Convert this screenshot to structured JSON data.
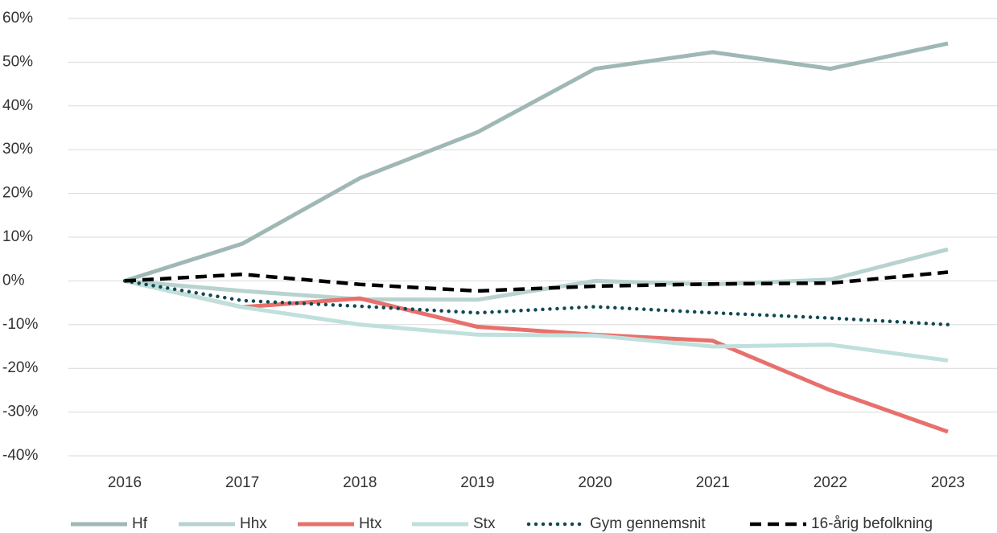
{
  "chart_data": {
    "type": "line",
    "categories": [
      "2016",
      "2017",
      "2018",
      "2019",
      "2020",
      "2021",
      "2022",
      "2023"
    ],
    "series": [
      {
        "name": "Hf",
        "color": "#9fb8b5",
        "style": "solid",
        "values": [
          0,
          8.5,
          23.5,
          34,
          48.5,
          52.3,
          48.5,
          54.3
        ]
      },
      {
        "name": "Hhx",
        "color": "#b8d3cf",
        "style": "solid",
        "values": [
          0,
          -2.3,
          -4.2,
          -4.3,
          0,
          -0.8,
          0.3,
          7.2
        ]
      },
      {
        "name": "Htx",
        "color": "#e8706c",
        "style": "solid",
        "values": [
          0,
          -6,
          -4,
          -10.5,
          -12.3,
          -13.7,
          -25,
          -34.5
        ]
      },
      {
        "name": "Stx",
        "color": "#bfe0dc",
        "style": "solid",
        "values": [
          0,
          -6,
          -10,
          -12.3,
          -12.5,
          -15,
          -14.6,
          -18.2
        ]
      },
      {
        "name": "Gym gennemsnit",
        "color": "#0f4a52",
        "style": "dotted",
        "values": [
          0,
          -4.5,
          -5.8,
          -7.3,
          -5.9,
          -7.3,
          -8.5,
          -10
        ]
      },
      {
        "name": "16-årig befolkning",
        "color": "#000000",
        "style": "dashed",
        "values": [
          0,
          1.5,
          -0.8,
          -2.3,
          -1.2,
          -0.7,
          -0.5,
          2
        ]
      }
    ],
    "ylim": [
      -40,
      60
    ],
    "yticks": [
      {
        "value": -40,
        "label": "-40%"
      },
      {
        "value": -30,
        "label": "-30%"
      },
      {
        "value": -20,
        "label": "-20%"
      },
      {
        "value": -10,
        "label": "-10%"
      },
      {
        "value": 0,
        "label": "0%"
      },
      {
        "value": 10,
        "label": "10%"
      },
      {
        "value": 20,
        "label": "20%"
      },
      {
        "value": 30,
        "label": "30%"
      },
      {
        "value": 40,
        "label": "40%"
      },
      {
        "value": 50,
        "label": "50%"
      },
      {
        "value": 60,
        "label": "60%"
      }
    ],
    "grid": true,
    "legend": "bottom"
  }
}
